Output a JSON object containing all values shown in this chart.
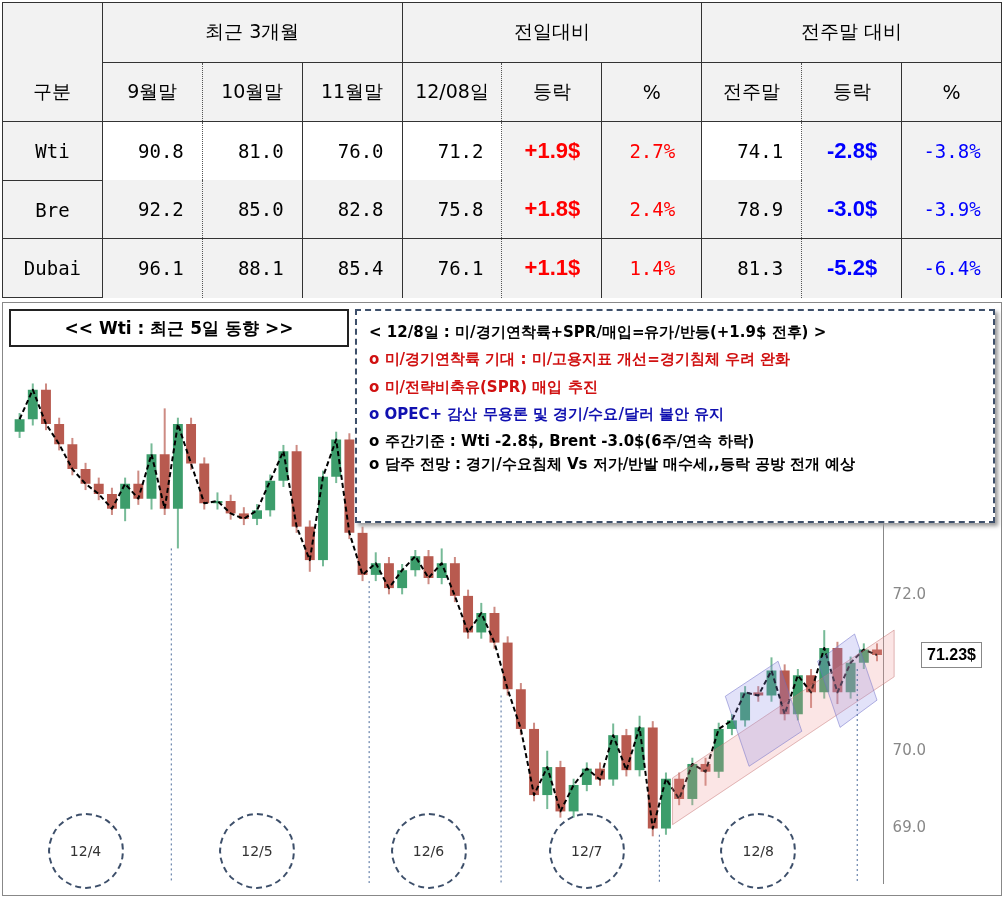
{
  "chart_data": [
    {
      "type": "other",
      "annotations": [
        "최근 3개월",
        "전일대비",
        "전주말 대비"
      ],
      "categories": [
        "구분",
        "9월말",
        "10월말",
        "11월말",
        "12/08일",
        "등락",
        "%",
        "전주말",
        "등락",
        "%"
      ],
      "y_categories": [
        "Wti",
        "Bre",
        "Dubai"
      ],
      "colors": [
        [
          "#000000",
          "#000000",
          "#000000",
          "#000000",
          "#ff0000",
          "#ff0000",
          "#000000",
          "#0000ff",
          "#0000ff"
        ],
        [
          "#000000",
          "#000000",
          "#000000",
          "#000000",
          "#ff0000",
          "#ff0000",
          "#000000",
          "#0000ff",
          "#0000ff"
        ],
        [
          "#000000",
          "#000000",
          "#000000",
          "#000000",
          "#ff0000",
          "#ff0000",
          "#000000",
          "#0000ff",
          "#0000ff"
        ]
      ],
      "cell_labels": [
        [
          "90.8",
          "81.0",
          "76.0",
          "71.2",
          "+1.9$",
          "2.7%",
          "74.1",
          "-2.8$",
          "-3.8%"
        ],
        [
          "92.2",
          "85.0",
          "82.8",
          "75.8",
          "+1.8$",
          "2.4%",
          "78.9",
          "-3.0$",
          "-3.9%"
        ],
        [
          "96.1",
          "88.1",
          "85.4",
          "76.1",
          "+1.1$",
          "1.4%",
          "81.3",
          "-5.2$",
          "-6.4%"
        ]
      ]
    },
    {
      "type": "candlestick",
      "title": "<< Wti : 최근 5일 동향 >>",
      "categories": [
        null,
        null,
        null,
        null,
        null,
        null,
        null,
        null,
        null,
        null,
        null,
        null,
        null,
        null,
        null,
        null,
        null,
        null,
        null,
        null,
        null,
        null,
        null,
        null,
        null,
        null,
        null,
        null,
        null,
        null,
        null,
        null,
        null,
        null,
        null,
        null,
        null,
        null,
        null,
        null,
        null,
        null,
        null,
        null,
        null,
        null,
        null,
        null,
        null,
        null,
        null,
        null,
        null,
        null,
        null,
        null,
        null,
        null,
        null,
        null,
        null,
        null,
        null,
        null,
        null,
        null
      ],
      "colors": [
        "#3c9d6b",
        "#3c9d6b",
        "#b85a4f",
        "#b85a4f",
        "#b85a4f",
        "#b85a4f",
        "#b85a4f",
        "#b85a4f",
        "#3c9d6b",
        "#b85a4f",
        "#3c9d6b",
        "#b85a4f",
        "#3c9d6b",
        "#b85a4f",
        "#b85a4f",
        "#3c9d6b",
        "#b85a4f",
        "#b85a4f",
        "#3c9d6b",
        "#3c9d6b",
        "#3c9d6b",
        "#b85a4f",
        "#b85a4f",
        "#3c9d6b",
        "#3c9d6b",
        "#b85a4f",
        "#b85a4f",
        "#3c9d6b",
        "#b85a4f",
        "#3c9d6b",
        "#3c9d6b",
        "#b85a4f",
        "#3c9d6b",
        "#b85a4f",
        "#b85a4f",
        "#3c9d6b",
        "#b85a4f",
        "#b85a4f",
        "#b85a4f",
        "#b85a4f",
        "#3c9d6b",
        "#b85a4f",
        "#3c9d6b",
        "#3c9d6b",
        "#b85a4f",
        "#3c9d6b",
        "#b85a4f",
        "#3c9d6b",
        "#b85a4f",
        "#3c9d6b",
        "#b85a4f",
        "#3c9d6b",
        "#b85a4f",
        "#3c9d6b",
        "#3c9d6b",
        "#3c9d6b",
        "#b85a4f",
        "#3c9d6b",
        "#b85a4f",
        "#3c9d6b",
        "#b85a4f",
        "#3c9d6b",
        "#b85a4f",
        "#3c9d6b",
        "#3c9d6b",
        "#b85a4f"
      ],
      "ohlc": [
        [
          74.1,
          74.34,
          74.02,
          74.26
        ],
        [
          74.26,
          74.72,
          74.18,
          74.64
        ],
        [
          74.64,
          74.72,
          74.12,
          74.2
        ],
        [
          74.2,
          74.28,
          73.86,
          73.94
        ],
        [
          73.94,
          74.02,
          73.54,
          73.62
        ],
        [
          73.62,
          73.7,
          73.35,
          73.43
        ],
        [
          73.43,
          73.51,
          73.22,
          73.3
        ],
        [
          73.3,
          73.38,
          73.03,
          73.11
        ],
        [
          73.11,
          73.51,
          72.95,
          73.43
        ],
        [
          73.43,
          73.6,
          73.16,
          73.24
        ],
        [
          73.24,
          73.95,
          73.1,
          73.81
        ],
        [
          73.81,
          74.4,
          73.03,
          73.11
        ],
        [
          73.11,
          74.28,
          72.6,
          74.2
        ],
        [
          74.2,
          74.28,
          73.61,
          73.69
        ],
        [
          73.69,
          73.77,
          73.1,
          73.18
        ],
        [
          73.18,
          73.32,
          73.1,
          73.21
        ],
        [
          73.21,
          73.29,
          72.97,
          73.05
        ],
        [
          73.05,
          73.13,
          72.9,
          72.98
        ],
        [
          72.98,
          73.17,
          72.9,
          73.09
        ],
        [
          73.09,
          73.55,
          73.01,
          73.47
        ],
        [
          73.47,
          73.93,
          73.39,
          73.85
        ],
        [
          73.85,
          73.93,
          72.8,
          72.88
        ],
        [
          72.88,
          72.96,
          72.3,
          72.45
        ],
        [
          72.45,
          73.6,
          72.37,
          73.52
        ],
        [
          73.52,
          74.1,
          73.44,
          74.0
        ],
        [
          74.0,
          74.08,
          72.72,
          72.8
        ],
        [
          72.8,
          72.88,
          72.18,
          72.26
        ],
        [
          72.26,
          72.55,
          72.18,
          72.41
        ],
        [
          72.41,
          72.49,
          72.01,
          72.09
        ],
        [
          72.09,
          72.4,
          72.01,
          72.32
        ],
        [
          72.32,
          72.58,
          72.24,
          72.5
        ],
        [
          72.5,
          72.58,
          72.14,
          72.22
        ],
        [
          72.22,
          72.6,
          72.14,
          72.41
        ],
        [
          72.41,
          72.49,
          71.91,
          71.99
        ],
        [
          71.99,
          72.07,
          71.44,
          71.52
        ],
        [
          71.52,
          71.9,
          71.44,
          71.77
        ],
        [
          71.77,
          71.85,
          71.31,
          71.39
        ],
        [
          71.39,
          71.47,
          70.71,
          70.79
        ],
        [
          70.79,
          70.87,
          70.2,
          70.28
        ],
        [
          70.28,
          70.36,
          69.35,
          69.43
        ],
        [
          69.43,
          70.0,
          69.25,
          69.79
        ],
        [
          69.79,
          69.87,
          69.14,
          69.22
        ],
        [
          69.22,
          69.64,
          69.14,
          69.56
        ],
        [
          69.56,
          69.85,
          69.48,
          69.77
        ],
        [
          69.77,
          69.85,
          69.55,
          69.63
        ],
        [
          69.63,
          70.35,
          69.55,
          70.2
        ],
        [
          70.2,
          70.28,
          69.67,
          69.75
        ],
        [
          69.75,
          70.45,
          69.67,
          70.3
        ],
        [
          70.3,
          70.38,
          68.9,
          69.0
        ],
        [
          69.0,
          69.72,
          68.92,
          69.64
        ],
        [
          69.64,
          69.72,
          69.3,
          69.38
        ],
        [
          69.38,
          69.91,
          69.3,
          69.83
        ],
        [
          69.83,
          69.91,
          69.55,
          69.73
        ],
        [
          69.73,
          70.36,
          69.65,
          70.28
        ],
        [
          70.28,
          70.47,
          70.2,
          70.39
        ],
        [
          70.39,
          70.83,
          70.31,
          70.75
        ],
        [
          70.75,
          70.83,
          70.63,
          70.71
        ],
        [
          70.71,
          71.2,
          70.63,
          71.03
        ],
        [
          71.03,
          71.11,
          70.39,
          70.47
        ],
        [
          70.47,
          71.05,
          70.39,
          70.97
        ],
        [
          70.97,
          71.05,
          70.55,
          70.75
        ],
        [
          70.75,
          71.55,
          70.67,
          71.32
        ],
        [
          71.32,
          71.4,
          70.6,
          70.75
        ],
        [
          70.75,
          71.21,
          70.67,
          71.13
        ],
        [
          71.13,
          71.38,
          71.05,
          71.3
        ],
        [
          71.3,
          71.38,
          71.15,
          71.23
        ]
      ],
      "series": [
        {
          "type": "line",
          "color": "#000000",
          "line_style": "dashed",
          "values": [
            74.26,
            74.64,
            74.2,
            73.94,
            73.62,
            73.43,
            73.3,
            73.11,
            73.43,
            73.24,
            73.81,
            73.11,
            74.2,
            73.69,
            73.18,
            73.21,
            73.05,
            72.98,
            73.09,
            73.47,
            73.85,
            72.88,
            72.45,
            73.52,
            74.0,
            72.8,
            72.26,
            72.41,
            72.09,
            72.32,
            72.5,
            72.22,
            72.41,
            71.99,
            71.52,
            71.77,
            71.39,
            70.79,
            70.28,
            69.43,
            69.79,
            69.22,
            69.56,
            69.77,
            69.63,
            70.2,
            69.75,
            70.3,
            69.0,
            69.64,
            69.38,
            69.83,
            69.73,
            70.28,
            70.39,
            70.75,
            70.71,
            71.03,
            70.47,
            70.97,
            70.75,
            71.32,
            70.75,
            71.13,
            71.3,
            71.23
          ]
        }
      ],
      "ylim": [
        68.3,
        75.6
      ],
      "yticks": [
        {
          "value": 69,
          "label": "69.0"
        },
        {
          "value": 70,
          "label": "70.0"
        },
        {
          "value": 72,
          "label": "72.0"
        }
      ],
      "annotations": [
        "< 12/8일 : 미/경기연착륙+SPR/매입=유가/반등(+1.9$ 전후) >",
        "o 미/경기연착륙 기대 : 미/고용지표 개선=경기침체 우려 완화",
        "o 미/전략비축유(SPR) 매입 추진",
        "o OPEC+ 감산 무용론 및 경기/수요/달러 불안 유지",
        "o 주간기준 : Wti -2.8$, Brent -3.0$(6주/연속 하락)",
        "o 담주 전망 : 경기/수요침체 Vs 저가/반발 매수세,,등락 공방 전개 예상",
        "12/4",
        "12/5",
        "12/6",
        "12/7",
        "12/8",
        "71.23$"
      ],
      "grid": false,
      "legend": false,
      "marker": "none",
      "tick_labels": "y"
    }
  ]
}
